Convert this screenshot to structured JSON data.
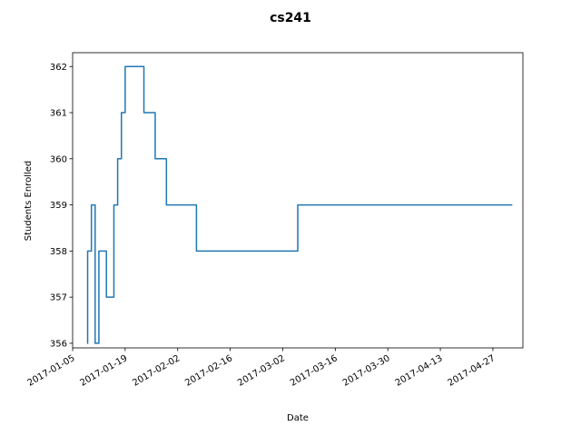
{
  "chart_data": {
    "type": "line",
    "title": "cs241",
    "xlabel": "Date",
    "ylabel": "Students Enrolled",
    "xlim": [
      "2017-01-05",
      "2017-05-05"
    ],
    "ylim": [
      355.9,
      362.3
    ],
    "x_ticks": [
      "2017-01-05",
      "2017-01-19",
      "2017-02-02",
      "2017-02-16",
      "2017-03-02",
      "2017-03-16",
      "2017-03-30",
      "2017-04-13",
      "2017-04-27"
    ],
    "y_ticks": [
      356,
      357,
      358,
      359,
      360,
      361,
      362
    ],
    "grid": false,
    "series": [
      {
        "color": "#1f77b4",
        "points": [
          [
            "2017-01-09",
            356
          ],
          [
            "2017-01-09",
            358
          ],
          [
            "2017-01-10",
            358
          ],
          [
            "2017-01-10",
            359
          ],
          [
            "2017-01-11",
            359
          ],
          [
            "2017-01-11",
            356
          ],
          [
            "2017-01-12",
            356
          ],
          [
            "2017-01-12",
            358
          ],
          [
            "2017-01-14",
            358
          ],
          [
            "2017-01-14",
            357
          ],
          [
            "2017-01-16",
            357
          ],
          [
            "2017-01-16",
            359
          ],
          [
            "2017-01-17",
            359
          ],
          [
            "2017-01-17",
            360
          ],
          [
            "2017-01-18",
            360
          ],
          [
            "2017-01-18",
            361
          ],
          [
            "2017-01-19",
            361
          ],
          [
            "2017-01-19",
            362
          ],
          [
            "2017-01-24",
            362
          ],
          [
            "2017-01-24",
            361
          ],
          [
            "2017-01-27",
            361
          ],
          [
            "2017-01-27",
            360
          ],
          [
            "2017-01-30",
            360
          ],
          [
            "2017-01-30",
            359
          ],
          [
            "2017-02-07",
            359
          ],
          [
            "2017-02-07",
            358
          ],
          [
            "2017-03-06",
            358
          ],
          [
            "2017-03-06",
            359
          ],
          [
            "2017-05-02",
            359
          ]
        ]
      }
    ]
  }
}
